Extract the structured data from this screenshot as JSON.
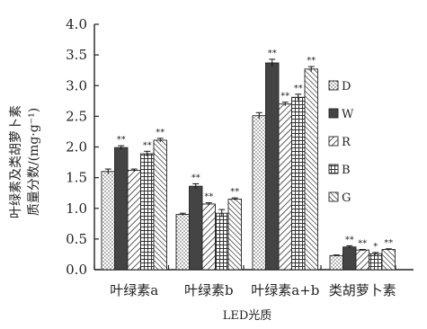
{
  "chart_data": {
    "type": "bar",
    "ylabel_line1": "叶绿素及类胡萝卜素",
    "ylabel_line2": "质量分数/(mg·g⁻¹)",
    "xlabel": "LED光质",
    "ylim": [
      0,
      4.0
    ],
    "yticks": [
      "0.0",
      "0.5",
      "1.0",
      "1.5",
      "2.0",
      "2.5",
      "3.0",
      "3.5",
      "4.0"
    ],
    "categories": [
      "叶绿素a",
      "叶绿素b",
      "叶绿素a+b",
      "类胡萝卜素"
    ],
    "legend_position": "right",
    "series": [
      {
        "name": "D",
        "pattern": "dots",
        "values": [
          1.6,
          0.9,
          2.51,
          0.23
        ],
        "errors": [
          0.04,
          0.02,
          0.05,
          0.01
        ],
        "sig": [
          "",
          "",
          "",
          ""
        ]
      },
      {
        "name": "W",
        "pattern": "solid",
        "values": [
          1.99,
          1.36,
          3.37,
          0.37
        ],
        "errors": [
          0.03,
          0.04,
          0.06,
          0.02
        ],
        "sig": [
          "**",
          "**",
          "**",
          "**"
        ]
      },
      {
        "name": "R",
        "pattern": "diagonal",
        "values": [
          1.62,
          1.07,
          2.7,
          0.32
        ],
        "errors": [
          0.02,
          0.02,
          0.03,
          0.01
        ],
        "sig": [
          "",
          "**",
          "**",
          "**"
        ]
      },
      {
        "name": "B",
        "pattern": "grid",
        "values": [
          1.89,
          0.92,
          2.81,
          0.26
        ],
        "errors": [
          0.04,
          0.06,
          0.05,
          0.02
        ],
        "sig": [
          "**",
          "",
          "**",
          "*"
        ]
      },
      {
        "name": "G",
        "pattern": "hatch",
        "values": [
          2.11,
          1.15,
          3.27,
          0.33
        ],
        "errors": [
          0.03,
          0.02,
          0.04,
          0.01
        ],
        "sig": [
          "**",
          "**",
          "**",
          "**"
        ]
      }
    ]
  }
}
